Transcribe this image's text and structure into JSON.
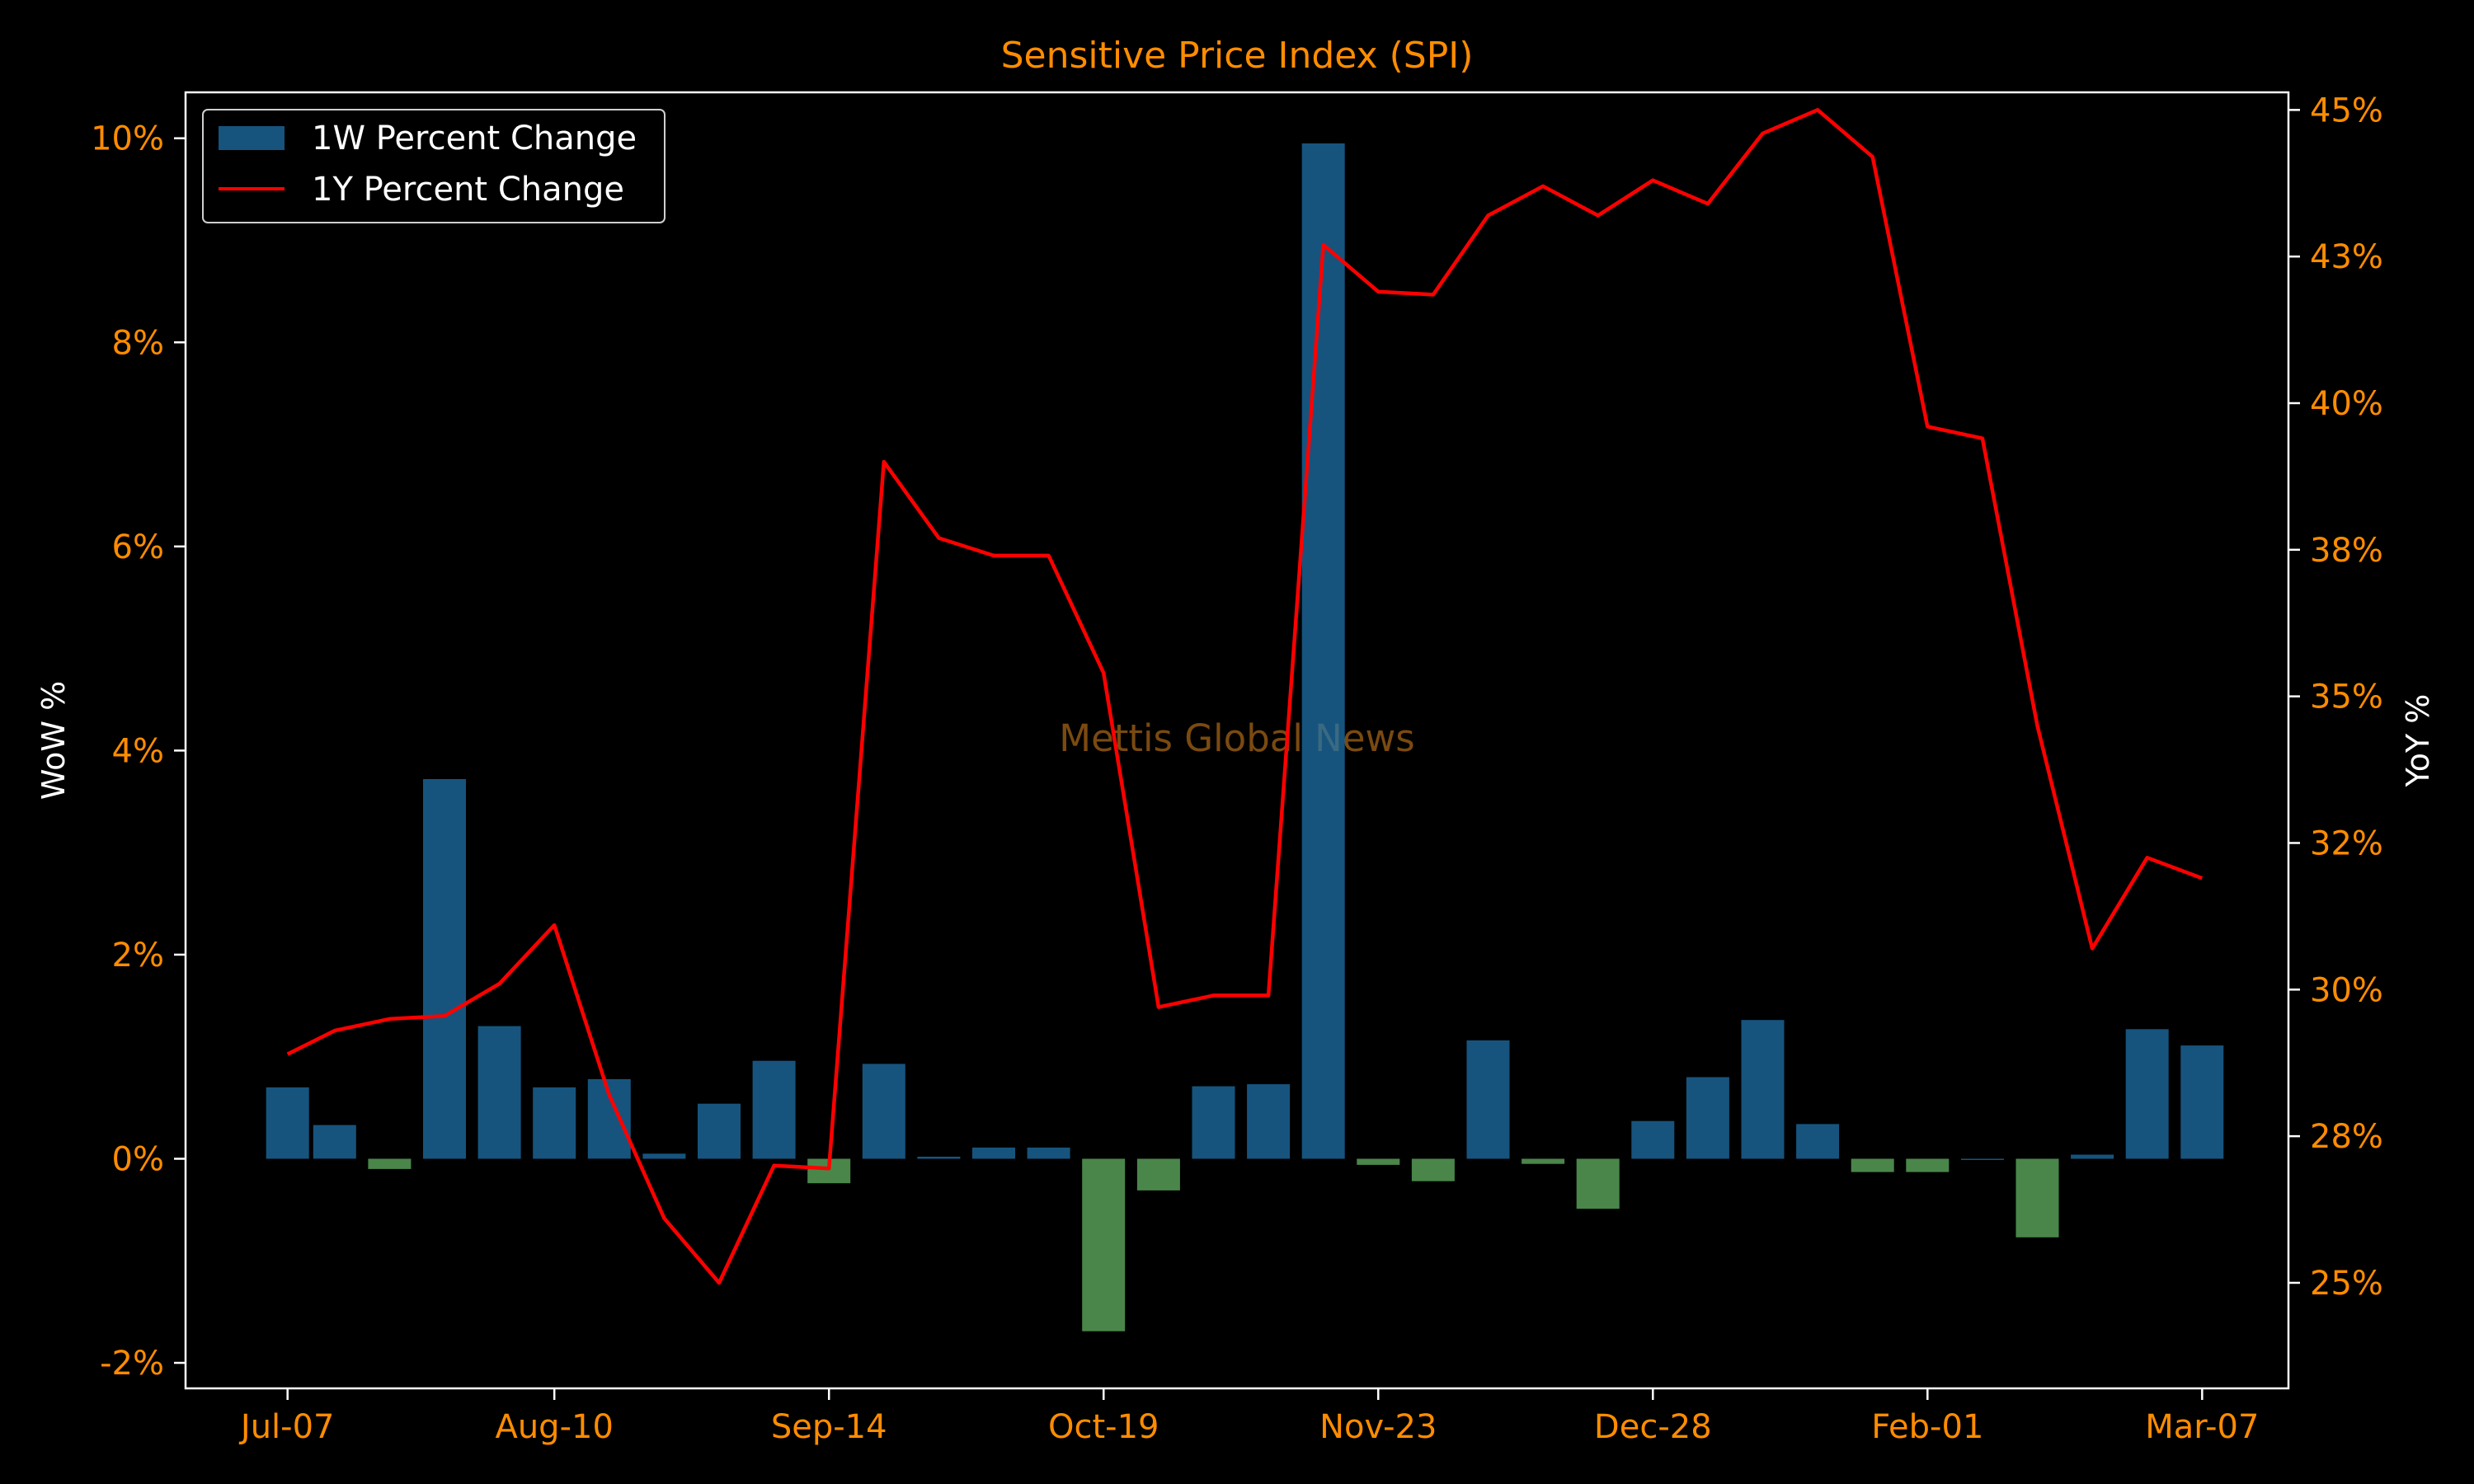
{
  "colors": {
    "background": "#000000",
    "accent": "#FF8C00",
    "text": "#FFFFFF",
    "positive_bar": "#1F77B4",
    "negative_bar": "#5CA85C",
    "line": "#FF0000",
    "watermark": "#7A4A10",
    "frame": "#FFFFFF"
  },
  "watermark": "Mettis Global News",
  "chart_data": {
    "type": "bar",
    "title": "Sensitive Price Index (SPI)",
    "ylabel": "WoW %",
    "y2label": "YoY %",
    "ylim": [
      -2.25,
      10.45
    ],
    "y2lim": [
      23.2,
      45.3
    ],
    "yticks": [
      -2,
      0,
      2,
      4,
      6,
      8,
      10
    ],
    "ytick_labels": [
      "-2%",
      "0%",
      "2%",
      "4%",
      "6%",
      "8%",
      "10%"
    ],
    "y2ticks": [
      25,
      27.5,
      30,
      32.5,
      35,
      37.5,
      40,
      42.5,
      45
    ],
    "y2tick_labels": [
      "25%",
      "28%",
      "30%",
      "32%",
      "35%",
      "38%",
      "40%",
      "43%",
      "45%"
    ],
    "xlim": [
      "2023-06-24",
      "2024-03-18"
    ],
    "xticks": [
      "2023-07-07",
      "2023-08-10",
      "2023-09-14",
      "2023-10-19",
      "2023-11-23",
      "2023-12-28",
      "2024-02-01",
      "2024-03-07"
    ],
    "xtick_labels": [
      "Jul-07",
      "Aug-10",
      "Sep-14",
      "Oct-19",
      "Nov-23",
      "Dec-28",
      "Feb-01",
      "Mar-07"
    ],
    "legend": {
      "position": "top-left",
      "entries": [
        "1W Percent Change",
        "1Y Percent Change"
      ]
    },
    "grid": false,
    "series": [
      {
        "name": "1W Percent Change",
        "kind": "bar",
        "x": [
          "2023-07-07",
          "2023-07-13",
          "2023-07-20",
          "2023-07-27",
          "2023-08-03",
          "2023-08-10",
          "2023-08-17",
          "2023-08-24",
          "2023-08-31",
          "2023-09-07",
          "2023-09-14",
          "2023-09-21",
          "2023-09-28",
          "2023-10-05",
          "2023-10-12",
          "2023-10-19",
          "2023-10-26",
          "2023-11-02",
          "2023-11-09",
          "2023-11-16",
          "2023-11-23",
          "2023-11-30",
          "2023-12-07",
          "2023-12-14",
          "2023-12-21",
          "2023-12-28",
          "2024-01-04",
          "2024-01-11",
          "2024-01-18",
          "2024-01-25",
          "2024-02-01",
          "2024-02-08",
          "2024-02-15",
          "2024-02-22",
          "2024-02-29",
          "2024-03-07"
        ],
        "values": [
          0.7,
          0.33,
          -0.1,
          3.72,
          1.3,
          0.7,
          0.78,
          0.05,
          0.54,
          0.96,
          -0.24,
          0.93,
          0.02,
          0.11,
          0.11,
          -1.69,
          -0.31,
          0.71,
          0.73,
          9.95,
          -0.06,
          -0.22,
          1.16,
          -0.05,
          -0.49,
          0.37,
          0.8,
          1.36,
          0.34,
          -0.13,
          -0.13,
          0.0,
          -0.77,
          0.04,
          1.27,
          1.11
        ]
      },
      {
        "name": "1Y Percent Change",
        "kind": "line",
        "x": [
          "2023-07-07",
          "2023-07-13",
          "2023-07-20",
          "2023-07-27",
          "2023-08-03",
          "2023-08-10",
          "2023-08-17",
          "2023-08-24",
          "2023-08-31",
          "2023-09-07",
          "2023-09-14",
          "2023-09-21",
          "2023-09-28",
          "2023-10-05",
          "2023-10-12",
          "2023-10-19",
          "2023-10-26",
          "2023-11-02",
          "2023-11-09",
          "2023-11-16",
          "2023-11-23",
          "2023-11-30",
          "2023-12-07",
          "2023-12-14",
          "2023-12-21",
          "2023-12-28",
          "2024-01-04",
          "2024-01-11",
          "2024-01-18",
          "2024-01-25",
          "2024-02-01",
          "2024-02-08",
          "2024-02-15",
          "2024-02-22",
          "2024-02-29",
          "2024-03-07"
        ],
        "values": [
          28.9,
          29.3,
          29.5,
          29.55,
          30.1,
          31.1,
          28.2,
          26.1,
          25.0,
          27.0,
          26.95,
          39.0,
          37.7,
          37.4,
          37.4,
          35.4,
          29.7,
          29.9,
          29.9,
          42.7,
          41.9,
          41.85,
          43.2,
          43.7,
          43.2,
          43.8,
          43.4,
          44.6,
          45.0,
          44.2,
          39.6,
          39.4,
          34.5,
          30.7,
          32.25,
          31.9
        ]
      }
    ]
  }
}
